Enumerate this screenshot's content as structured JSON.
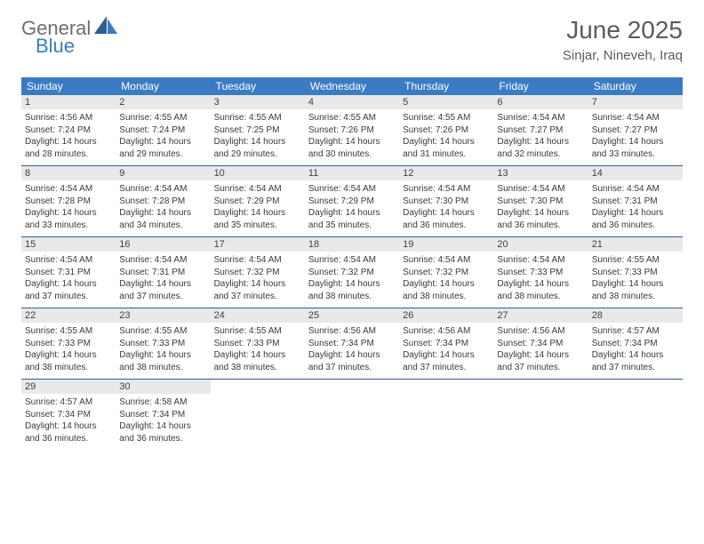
{
  "logo": {
    "text1": "General",
    "text2": "Blue"
  },
  "title": "June 2025",
  "location": "Sinjar, Nineveh, Iraq",
  "colors": {
    "header_bg": "#3a7cc4",
    "daynum_bg": "#e9e9e9",
    "week_border": "#2f5f8f",
    "logo_gray": "#6c6d70",
    "logo_blue": "#3a7cc4",
    "title_gray": "#5a5b5d",
    "text": "#3a3a3a",
    "bg": "#ffffff"
  },
  "day_names": [
    "Sunday",
    "Monday",
    "Tuesday",
    "Wednesday",
    "Thursday",
    "Friday",
    "Saturday"
  ],
  "weeks": [
    [
      {
        "n": "1",
        "sr": "Sunrise: 4:56 AM",
        "ss": "Sunset: 7:24 PM",
        "dl": "Daylight: 14 hours and 28 minutes."
      },
      {
        "n": "2",
        "sr": "Sunrise: 4:55 AM",
        "ss": "Sunset: 7:24 PM",
        "dl": "Daylight: 14 hours and 29 minutes."
      },
      {
        "n": "3",
        "sr": "Sunrise: 4:55 AM",
        "ss": "Sunset: 7:25 PM",
        "dl": "Daylight: 14 hours and 29 minutes."
      },
      {
        "n": "4",
        "sr": "Sunrise: 4:55 AM",
        "ss": "Sunset: 7:26 PM",
        "dl": "Daylight: 14 hours and 30 minutes."
      },
      {
        "n": "5",
        "sr": "Sunrise: 4:55 AM",
        "ss": "Sunset: 7:26 PM",
        "dl": "Daylight: 14 hours and 31 minutes."
      },
      {
        "n": "6",
        "sr": "Sunrise: 4:54 AM",
        "ss": "Sunset: 7:27 PM",
        "dl": "Daylight: 14 hours and 32 minutes."
      },
      {
        "n": "7",
        "sr": "Sunrise: 4:54 AM",
        "ss": "Sunset: 7:27 PM",
        "dl": "Daylight: 14 hours and 33 minutes."
      }
    ],
    [
      {
        "n": "8",
        "sr": "Sunrise: 4:54 AM",
        "ss": "Sunset: 7:28 PM",
        "dl": "Daylight: 14 hours and 33 minutes."
      },
      {
        "n": "9",
        "sr": "Sunrise: 4:54 AM",
        "ss": "Sunset: 7:28 PM",
        "dl": "Daylight: 14 hours and 34 minutes."
      },
      {
        "n": "10",
        "sr": "Sunrise: 4:54 AM",
        "ss": "Sunset: 7:29 PM",
        "dl": "Daylight: 14 hours and 35 minutes."
      },
      {
        "n": "11",
        "sr": "Sunrise: 4:54 AM",
        "ss": "Sunset: 7:29 PM",
        "dl": "Daylight: 14 hours and 35 minutes."
      },
      {
        "n": "12",
        "sr": "Sunrise: 4:54 AM",
        "ss": "Sunset: 7:30 PM",
        "dl": "Daylight: 14 hours and 36 minutes."
      },
      {
        "n": "13",
        "sr": "Sunrise: 4:54 AM",
        "ss": "Sunset: 7:30 PM",
        "dl": "Daylight: 14 hours and 36 minutes."
      },
      {
        "n": "14",
        "sr": "Sunrise: 4:54 AM",
        "ss": "Sunset: 7:31 PM",
        "dl": "Daylight: 14 hours and 36 minutes."
      }
    ],
    [
      {
        "n": "15",
        "sr": "Sunrise: 4:54 AM",
        "ss": "Sunset: 7:31 PM",
        "dl": "Daylight: 14 hours and 37 minutes."
      },
      {
        "n": "16",
        "sr": "Sunrise: 4:54 AM",
        "ss": "Sunset: 7:31 PM",
        "dl": "Daylight: 14 hours and 37 minutes."
      },
      {
        "n": "17",
        "sr": "Sunrise: 4:54 AM",
        "ss": "Sunset: 7:32 PM",
        "dl": "Daylight: 14 hours and 37 minutes."
      },
      {
        "n": "18",
        "sr": "Sunrise: 4:54 AM",
        "ss": "Sunset: 7:32 PM",
        "dl": "Daylight: 14 hours and 38 minutes."
      },
      {
        "n": "19",
        "sr": "Sunrise: 4:54 AM",
        "ss": "Sunset: 7:32 PM",
        "dl": "Daylight: 14 hours and 38 minutes."
      },
      {
        "n": "20",
        "sr": "Sunrise: 4:54 AM",
        "ss": "Sunset: 7:33 PM",
        "dl": "Daylight: 14 hours and 38 minutes."
      },
      {
        "n": "21",
        "sr": "Sunrise: 4:55 AM",
        "ss": "Sunset: 7:33 PM",
        "dl": "Daylight: 14 hours and 38 minutes."
      }
    ],
    [
      {
        "n": "22",
        "sr": "Sunrise: 4:55 AM",
        "ss": "Sunset: 7:33 PM",
        "dl": "Daylight: 14 hours and 38 minutes."
      },
      {
        "n": "23",
        "sr": "Sunrise: 4:55 AM",
        "ss": "Sunset: 7:33 PM",
        "dl": "Daylight: 14 hours and 38 minutes."
      },
      {
        "n": "24",
        "sr": "Sunrise: 4:55 AM",
        "ss": "Sunset: 7:33 PM",
        "dl": "Daylight: 14 hours and 38 minutes."
      },
      {
        "n": "25",
        "sr": "Sunrise: 4:56 AM",
        "ss": "Sunset: 7:34 PM",
        "dl": "Daylight: 14 hours and 37 minutes."
      },
      {
        "n": "26",
        "sr": "Sunrise: 4:56 AM",
        "ss": "Sunset: 7:34 PM",
        "dl": "Daylight: 14 hours and 37 minutes."
      },
      {
        "n": "27",
        "sr": "Sunrise: 4:56 AM",
        "ss": "Sunset: 7:34 PM",
        "dl": "Daylight: 14 hours and 37 minutes."
      },
      {
        "n": "28",
        "sr": "Sunrise: 4:57 AM",
        "ss": "Sunset: 7:34 PM",
        "dl": "Daylight: 14 hours and 37 minutes."
      }
    ],
    [
      {
        "n": "29",
        "sr": "Sunrise: 4:57 AM",
        "ss": "Sunset: 7:34 PM",
        "dl": "Daylight: 14 hours and 36 minutes."
      },
      {
        "n": "30",
        "sr": "Sunrise: 4:58 AM",
        "ss": "Sunset: 7:34 PM",
        "dl": "Daylight: 14 hours and 36 minutes."
      },
      null,
      null,
      null,
      null,
      null
    ]
  ]
}
